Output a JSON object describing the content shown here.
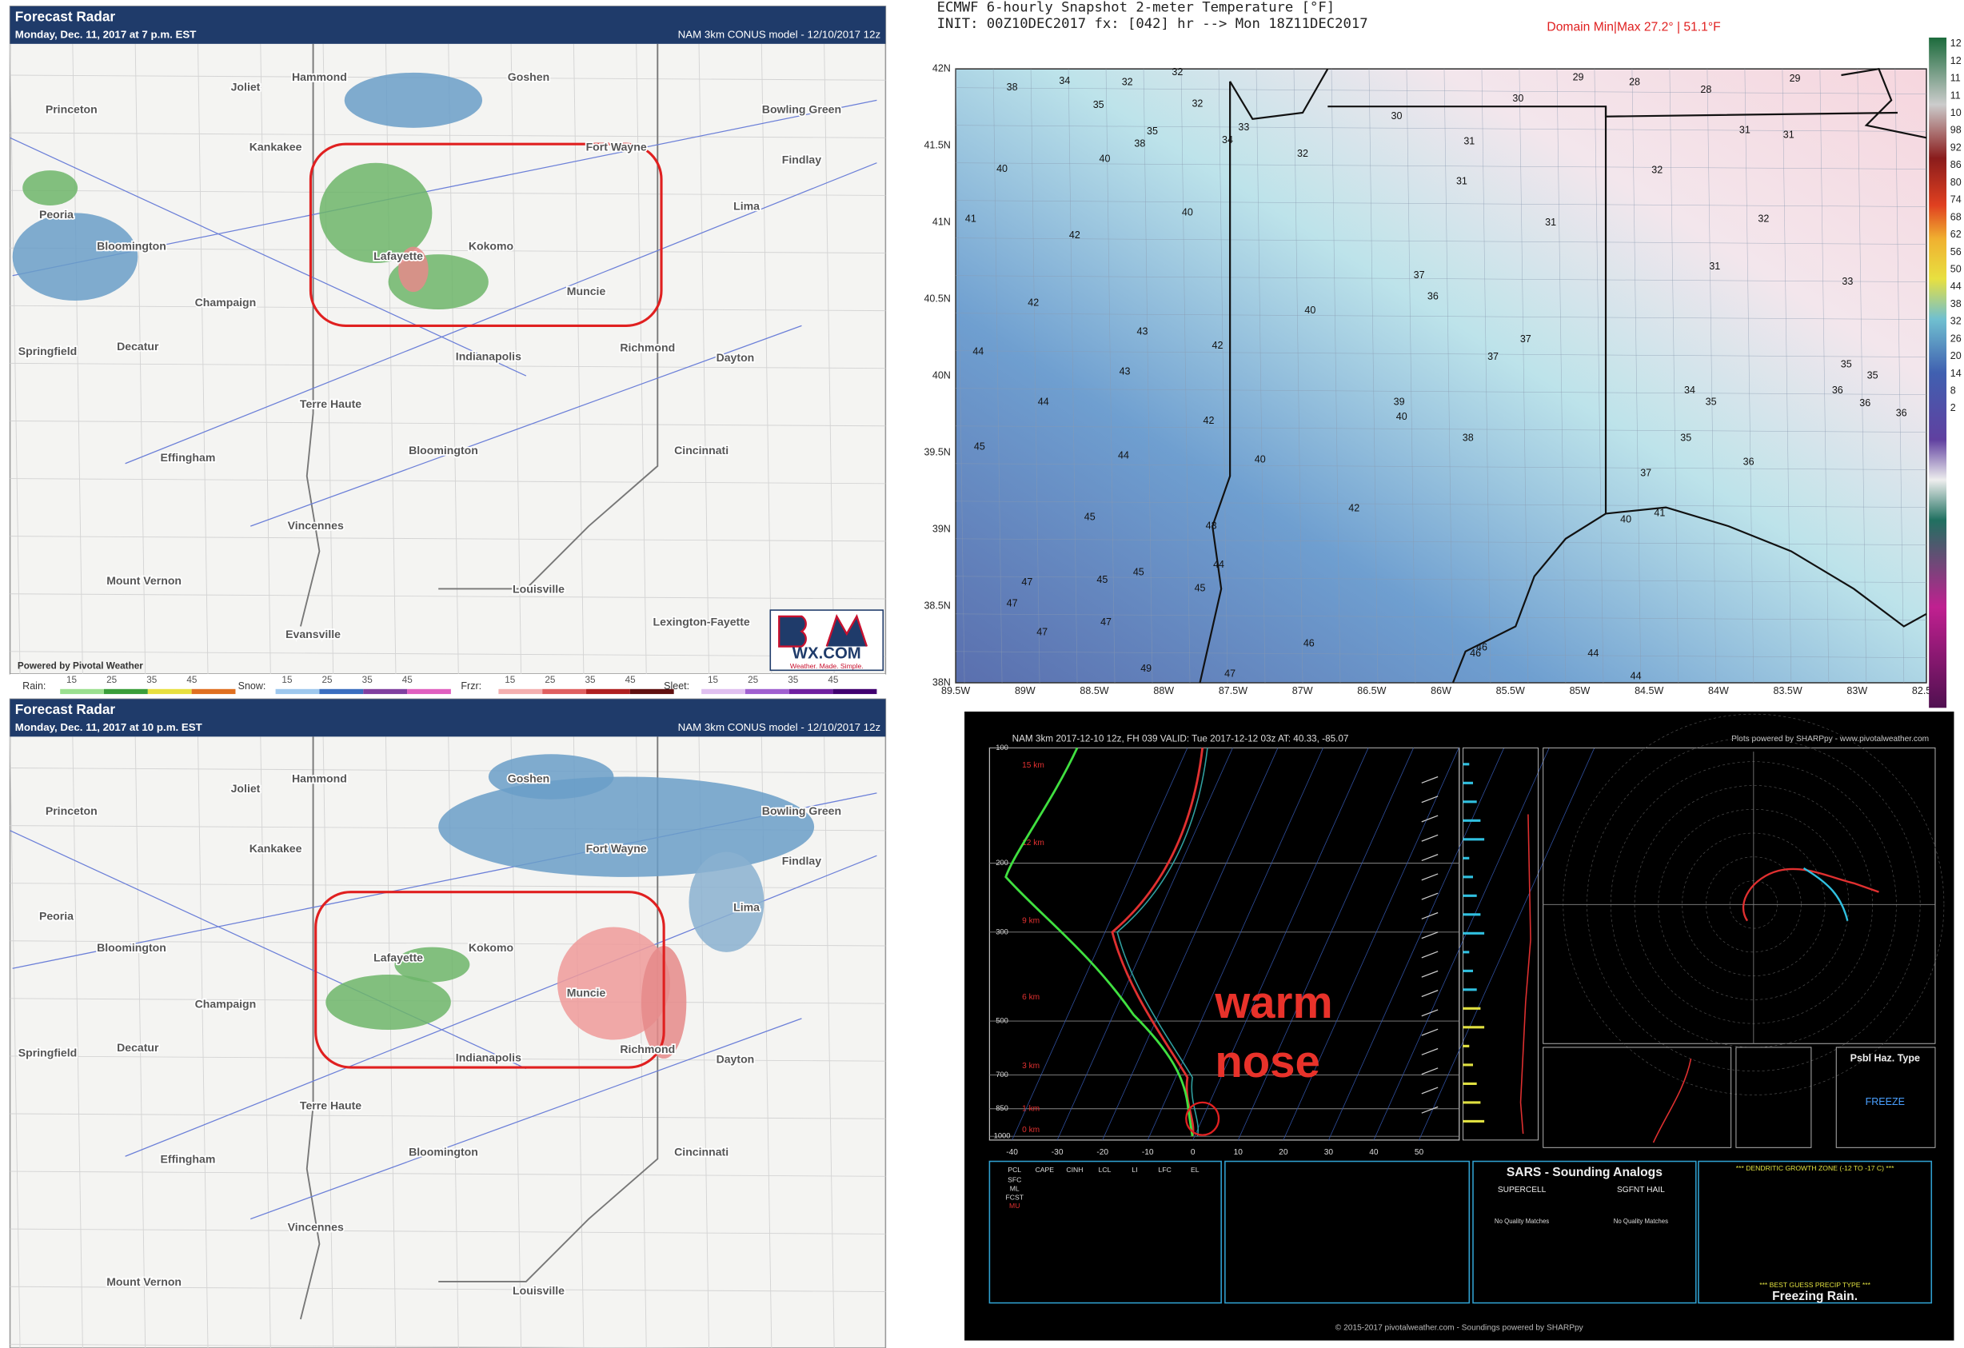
{
  "radar_panels": [
    {
      "title": "Forecast Radar",
      "subtitle": "Monday, Dec. 11, 2017 at 7 p.m. EST",
      "model": "NAM 3km CONUS model - 12/10/2017 12z",
      "credit": "Powered by Pivotal Weather",
      "cities": [
        "Princeton",
        "Joliet",
        "Hammond",
        "Goshen",
        "Bowling Green",
        "Kankakee",
        "Fort Wayne",
        "Findlay",
        "Peoria",
        "Bloomington",
        "Lafayette",
        "Kokomo",
        "Lima",
        "Champaign",
        "Muncie",
        "Springfield",
        "Decatur",
        "Indianapolis",
        "Richmond",
        "Dayton",
        "Terre Haute",
        "Bloomington",
        "Cincinnati",
        "Effingham",
        "Vincennes",
        "Mount Vernon",
        "Louisville",
        "Lexington-Fayette",
        "Evansville"
      ]
    },
    {
      "title": "Forecast Radar",
      "subtitle": "Monday, Dec. 11, 2017 at 10 p.m. EST",
      "model": "NAM 3km CONUS model - 12/10/2017 12z",
      "cities": [
        "Princeton",
        "Joliet",
        "Hammond",
        "Goshen",
        "Bowling Green",
        "Kankakee",
        "Fort Wayne",
        "Findlay",
        "Peoria",
        "Bloomington",
        "Lafayette",
        "Kokomo",
        "Lima",
        "Champaign",
        "Muncie",
        "Springfield",
        "Decatur",
        "Indianapolis",
        "Richmond",
        "Dayton",
        "Terre Haute",
        "Bloomington",
        "Cincinnati",
        "Effingham",
        "Vincennes",
        "Mount Vernon",
        "Louisville"
      ]
    }
  ],
  "logo": {
    "text": "WX.COM",
    "tagline": "Weather. Made. Simple."
  },
  "legend": {
    "groups": [
      "Rain:",
      "Snow:",
      "Frzr:",
      "Sleet:"
    ],
    "ticks": [
      "15",
      "25",
      "35",
      "45"
    ]
  },
  "ecmwf": {
    "title": "ECMWF 6-hourly Snapshot 2-meter Temperature [°F]",
    "init": "INIT: 00Z10DEC2017 fx: [042] hr --> Mon 18Z11DEC2017",
    "domain": "Domain Min|Max 27.2° | 51.1°F",
    "lat_labels": [
      "42N",
      "41.5N",
      "41N",
      "40.5N",
      "40N",
      "39.5N",
      "39N",
      "38.5N",
      "38N"
    ],
    "lon_labels": [
      "89.5W",
      "89W",
      "88.5W",
      "88W",
      "87.5W",
      "87W",
      "86.5W",
      "86W",
      "85.5W",
      "85W",
      "84.5W",
      "84W",
      "83.5W",
      "83W",
      "82.5W"
    ],
    "colorbar_labels": [
      "12",
      "12",
      "11",
      "11",
      "10",
      "98",
      "92",
      "86",
      "80",
      "74",
      "68",
      "62",
      "56",
      "50",
      "44",
      "38",
      "32",
      "26",
      "20",
      "14",
      "8",
      "2"
    ],
    "station_values": [
      38,
      34,
      32,
      32,
      35,
      32,
      35,
      38,
      33,
      34,
      30,
      30,
      29,
      28,
      28,
      29,
      40,
      40,
      32,
      31,
      31,
      31,
      32,
      31,
      31,
      32,
      40,
      41,
      42,
      31,
      33,
      37,
      36,
      42,
      40,
      43,
      42,
      37,
      37,
      44,
      43,
      35,
      35,
      36,
      36,
      36,
      34,
      35,
      44,
      42,
      39,
      40,
      38,
      35,
      45,
      44,
      40,
      36,
      37,
      42,
      40,
      41,
      45,
      43,
      44,
      45,
      45,
      45,
      47,
      47,
      47,
      47,
      46,
      46,
      46,
      44,
      49,
      47,
      44
    ]
  },
  "sounding": {
    "header": "NAM 3km 2017-12-10 12z, FH 039   VALID: Tue 2017-12-12 03z   AT: 40.33, -85.07",
    "credit": "Plots powered by SHARPpy - www.pivotalweather.com",
    "pressure_labels": [
      100,
      200,
      300,
      500,
      700,
      850,
      1000
    ],
    "height_labels": [
      "15 km",
      "12 km",
      "9 km",
      "6 km",
      "3 km",
      "1 km",
      "0 km"
    ],
    "temp_labels": [
      -40,
      -30,
      -20,
      -10,
      0,
      10,
      20,
      30,
      40,
      50
    ],
    "annotation": [
      "warm",
      "nose"
    ],
    "table_cols": [
      "PCL",
      "CAPE",
      "CINH",
      "LCL",
      "LI",
      "LFC",
      "EL"
    ],
    "table_rows": [
      "SFC",
      "ML",
      "FCST",
      "MU"
    ],
    "sars_title": "SARS - Sounding Analogs",
    "supercell": "SUPERCELL",
    "hail": "SGFNT HAIL",
    "no_match": "No Quality Matches",
    "dgz": "*** DENDRITIC GROWTH ZONE (-12 TO -17 C) ***",
    "precip_heading": "*** BEST GUESS PRECIP TYPE ***",
    "precip_type": "Freezing Rain.",
    "hazard": "Psbl Haz. Type",
    "hazard_value": "FREEZE",
    "footer": "© 2015-2017 pivotalweather.com - Soundings powered by SHARPpy"
  }
}
